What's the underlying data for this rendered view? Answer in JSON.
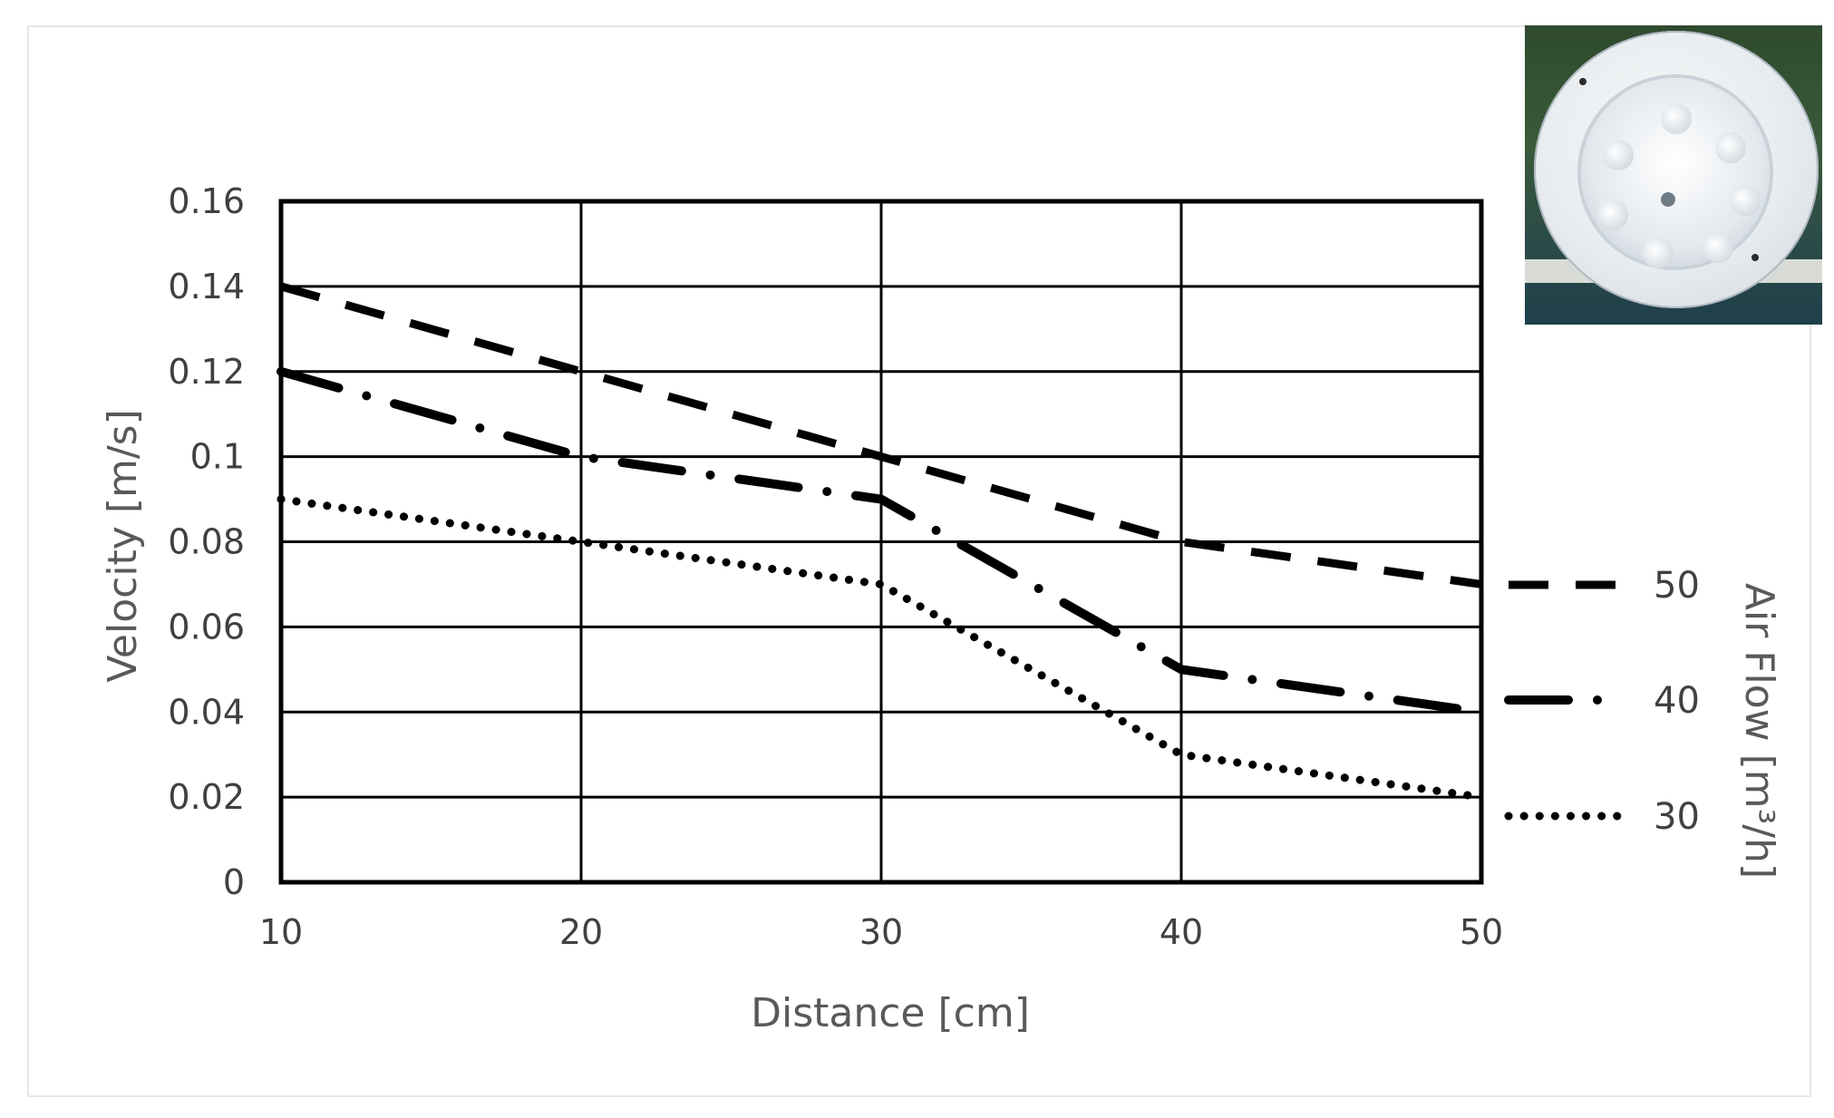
{
  "chart_data": {
    "type": "line",
    "x": [
      10,
      20,
      30,
      40,
      50
    ],
    "xlabel": "Distance [cm]",
    "ylabel": "Velocity [m/s]",
    "xlim": [
      10,
      50
    ],
    "ylim": [
      0,
      0.16
    ],
    "x_ticks": [
      "10",
      "20",
      "30",
      "40",
      "50"
    ],
    "y_ticks": [
      "0",
      "0.02",
      "0.04",
      "0.06",
      "0.08",
      "0.1",
      "0.12",
      "0.14",
      "0.16"
    ],
    "grid": true,
    "legend_title": "Air Flow [m³/h]",
    "legend_position": "right",
    "series": [
      {
        "name": "50",
        "values": [
          0.14,
          0.12,
          0.1,
          0.08,
          0.07
        ],
        "style": "dashed"
      },
      {
        "name": "40",
        "values": [
          0.12,
          0.1,
          0.09,
          0.05,
          0.04
        ],
        "style": "dash-dot"
      },
      {
        "name": "30",
        "values": [
          0.09,
          0.08,
          0.07,
          0.03,
          0.02
        ],
        "style": "dotted"
      }
    ]
  },
  "inset_photo": {
    "icon": "fan-diffuser-photo"
  },
  "colors": {
    "line": "#000000",
    "grid": "#000000",
    "tick_text": "#404040",
    "axis_title": "#595959"
  }
}
